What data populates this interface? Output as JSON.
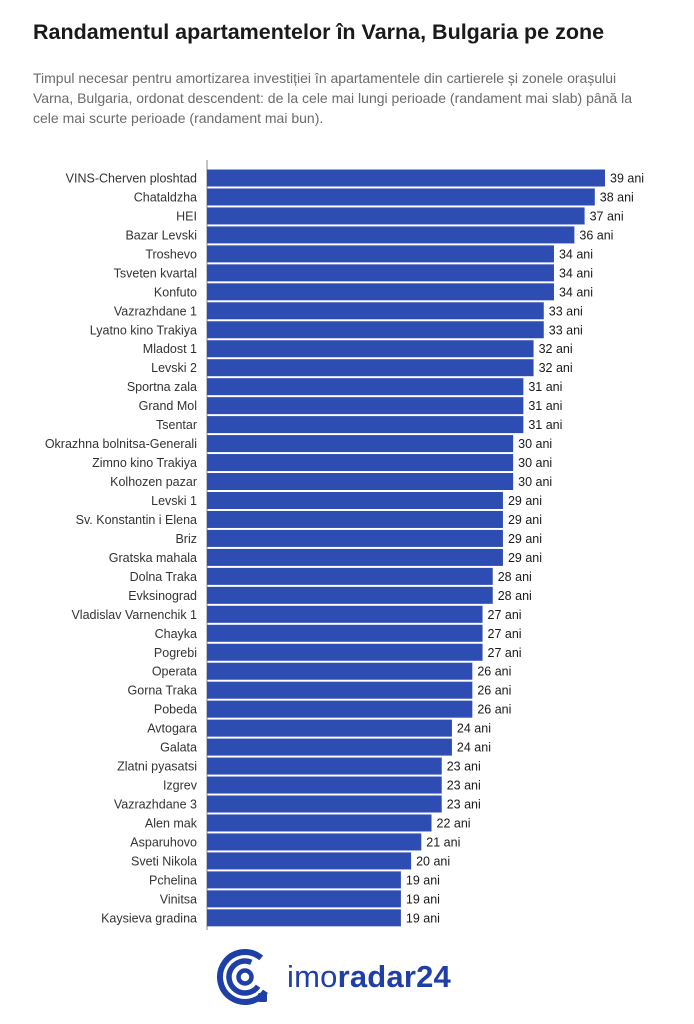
{
  "title": "Randamentul apartamentelor în Varna, Bulgaria pe zone",
  "subtitle": "Timpul necesar pentru amortizarea investiției în apartamentele din cartierele și zonele orașului Varna, Bulgaria, ordonat descendent: de la cele mai lungi perioade (randament mai slab) până la cele mai scurte perioade (randament mai bun).",
  "logo": {
    "text_regular": "imo",
    "text_bold": "radar24"
  },
  "colors": {
    "bar": "#2e4db3",
    "logo": "#1f3fa8",
    "axis": "#888888"
  },
  "chart_data": {
    "type": "bar",
    "orientation": "horizontal",
    "value_suffix": " ani",
    "categories": [
      "VINS-Cherven ploshtad",
      "Chataldzha",
      "HEI",
      "Bazar Levski",
      "Troshevo",
      "Tsveten kvartal",
      "Konfuto",
      "Vazrazhdane 1",
      "Lyatno kino Trakiya",
      "Mladost 1",
      "Levski 2",
      "Sportna zala",
      "Grand Mol",
      "Tsentar",
      "Okrazhna bolnitsa-Generali",
      "Zimno kino Trakiya",
      "Kolhozen pazar",
      "Levski 1",
      "Sv. Konstantin i Elena",
      "Briz",
      "Gratska mahala",
      "Dolna Traka",
      "Evksinograd",
      "Vladislav Varnenchik 1",
      "Chayka",
      "Pogrebi",
      "Operata",
      "Gorna Traka",
      "Pobeda",
      "Avtogara",
      "Galata",
      "Zlatni pyasatsi",
      "Izgrev",
      "Vazrazhdane 3",
      "Alen mak",
      "Asparuhovo",
      "Sveti Nikola",
      "Pchelina",
      "Vinitsa",
      "Kaysieva gradina"
    ],
    "values": [
      39,
      38,
      37,
      36,
      34,
      34,
      34,
      33,
      33,
      32,
      32,
      31,
      31,
      31,
      30,
      30,
      30,
      29,
      29,
      29,
      29,
      28,
      28,
      27,
      27,
      27,
      26,
      26,
      26,
      24,
      24,
      23,
      23,
      23,
      22,
      21,
      20,
      19,
      19,
      19
    ],
    "xlim": [
      0,
      39
    ],
    "grid": false,
    "legend": "none"
  }
}
